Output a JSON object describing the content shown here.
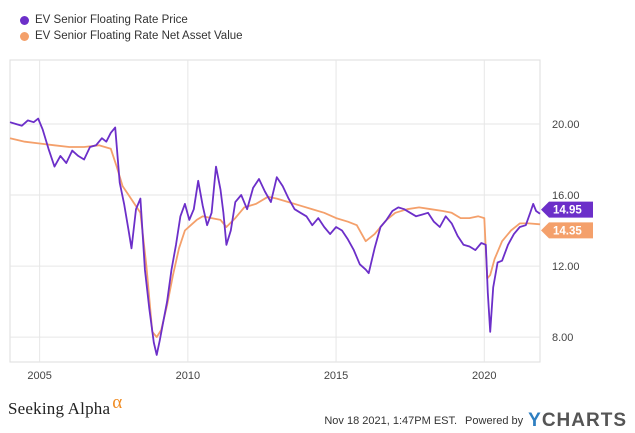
{
  "legend": {
    "items": [
      {
        "label": "EV Senior Floating Rate Price",
        "color": "#6c2fc9"
      },
      {
        "label": "EV Senior Floating Rate Net Asset Value",
        "color": "#f4a06b"
      }
    ]
  },
  "chart_data": {
    "type": "line",
    "x_ticks": [
      "2005",
      "2010",
      "2015",
      "2020"
    ],
    "y_ticks": [
      "8.00",
      "12.00",
      "16.00",
      "20.00"
    ],
    "xlim": [
      2004.0,
      2021.88
    ],
    "ylim": [
      6.6,
      23.6
    ],
    "grid": true,
    "y_axis_side": "right",
    "series": [
      {
        "name": "EV Senior Floating Rate Price",
        "color": "#6c2fc9",
        "last_label": "14.95",
        "x": [
          2004.0,
          2004.2,
          2004.4,
          2004.6,
          2004.8,
          2004.95,
          2005.1,
          2005.3,
          2005.5,
          2005.7,
          2005.9,
          2006.1,
          2006.3,
          2006.5,
          2006.7,
          2006.9,
          2007.1,
          2007.25,
          2007.4,
          2007.55,
          2007.7,
          2007.85,
          2008.0,
          2008.1,
          2008.25,
          2008.4,
          2008.55,
          2008.7,
          2008.85,
          2008.95,
          2009.05,
          2009.15,
          2009.3,
          2009.45,
          2009.6,
          2009.75,
          2009.9,
          2010.05,
          2010.2,
          2010.35,
          2010.5,
          2010.65,
          2010.8,
          2010.95,
          2011.1,
          2011.2,
          2011.3,
          2011.45,
          2011.6,
          2011.8,
          2012.0,
          2012.2,
          2012.4,
          2012.6,
          2012.8,
          2013.0,
          2013.2,
          2013.4,
          2013.6,
          2013.8,
          2014.0,
          2014.2,
          2014.4,
          2014.6,
          2014.8,
          2015.0,
          2015.2,
          2015.4,
          2015.6,
          2015.8,
          2016.0,
          2016.1,
          2016.3,
          2016.5,
          2016.7,
          2016.9,
          2017.1,
          2017.3,
          2017.5,
          2017.7,
          2017.9,
          2018.1,
          2018.3,
          2018.5,
          2018.7,
          2018.9,
          2019.1,
          2019.3,
          2019.5,
          2019.7,
          2019.9,
          2020.05,
          2020.12,
          2020.2,
          2020.3,
          2020.45,
          2020.6,
          2020.8,
          2021.0,
          2021.2,
          2021.4,
          2021.55,
          2021.65,
          2021.75,
          2021.88
        ],
        "y": [
          20.1,
          20.0,
          19.9,
          20.2,
          20.1,
          20.3,
          19.7,
          18.6,
          17.6,
          18.2,
          17.8,
          18.5,
          18.2,
          18.0,
          18.7,
          18.8,
          19.2,
          19.0,
          19.5,
          19.8,
          16.7,
          15.5,
          14.0,
          13.0,
          15.2,
          15.8,
          11.8,
          9.6,
          7.7,
          7.0,
          7.8,
          8.7,
          10.0,
          11.8,
          13.2,
          14.8,
          15.5,
          14.6,
          15.2,
          16.8,
          15.4,
          14.3,
          15.0,
          17.6,
          16.3,
          15.0,
          13.2,
          14.0,
          15.6,
          16.0,
          15.2,
          16.4,
          16.9,
          16.2,
          15.6,
          17.0,
          16.5,
          15.8,
          15.2,
          15.0,
          14.8,
          14.3,
          14.7,
          14.2,
          13.8,
          14.2,
          14.0,
          13.5,
          12.9,
          12.1,
          11.8,
          11.6,
          13.0,
          14.2,
          14.6,
          15.1,
          15.3,
          15.2,
          15.0,
          14.8,
          14.9,
          15.0,
          14.5,
          14.2,
          14.8,
          14.4,
          13.7,
          13.2,
          13.1,
          12.9,
          13.3,
          13.2,
          10.5,
          8.3,
          10.8,
          12.2,
          12.3,
          13.2,
          13.8,
          14.2,
          14.3,
          15.0,
          15.5,
          15.1,
          14.95
        ]
      },
      {
        "name": "EV Senior Floating Rate Net Asset Value",
        "color": "#f4a06b",
        "last_label": "14.35",
        "x": [
          2004.0,
          2004.5,
          2005.0,
          2005.5,
          2006.0,
          2006.5,
          2007.0,
          2007.4,
          2007.6,
          2007.8,
          2008.0,
          2008.2,
          2008.4,
          2008.6,
          2008.8,
          2008.95,
          2009.1,
          2009.3,
          2009.5,
          2009.7,
          2009.9,
          2010.1,
          2010.3,
          2010.5,
          2010.8,
          2011.1,
          2011.3,
          2011.6,
          2011.9,
          2012.3,
          2012.7,
          2013.0,
          2013.4,
          2013.8,
          2014.2,
          2014.6,
          2015.0,
          2015.4,
          2015.7,
          2016.0,
          2016.3,
          2016.7,
          2017.0,
          2017.4,
          2017.8,
          2018.2,
          2018.6,
          2018.9,
          2019.2,
          2019.5,
          2019.8,
          2020.0,
          2020.1,
          2020.2,
          2020.35,
          2020.6,
          2020.9,
          2021.2,
          2021.5,
          2021.88
        ],
        "y": [
          19.2,
          19.0,
          18.9,
          18.8,
          18.7,
          18.7,
          18.8,
          18.6,
          17.6,
          16.5,
          16.0,
          15.5,
          15.0,
          12.0,
          8.3,
          8.0,
          8.4,
          9.8,
          11.5,
          13.0,
          14.0,
          14.3,
          14.6,
          14.8,
          14.7,
          14.6,
          14.2,
          14.7,
          15.3,
          15.5,
          15.9,
          15.8,
          15.6,
          15.4,
          15.2,
          15.0,
          14.7,
          14.5,
          14.3,
          13.4,
          13.8,
          14.6,
          15.0,
          15.2,
          15.3,
          15.2,
          15.1,
          15.0,
          14.7,
          14.7,
          14.8,
          14.7,
          11.3,
          11.5,
          12.4,
          13.4,
          14.0,
          14.4,
          14.4,
          14.35
        ]
      }
    ]
  },
  "footer": {
    "brand": "Seeking Alpha",
    "brand_mark": "α",
    "timestamp": "Nov 18 2021, 1:47PM EST.",
    "powered_by": "Powered by",
    "provider_y": "Y",
    "provider_rest": "CHARTS"
  }
}
